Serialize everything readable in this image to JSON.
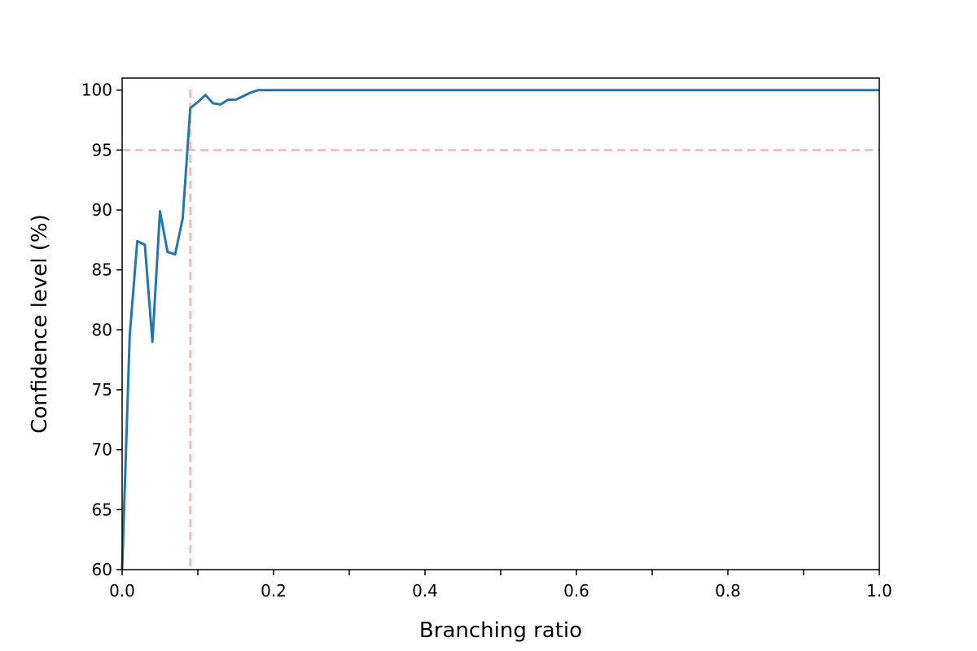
{
  "chart_data": {
    "type": "line",
    "title": "",
    "xlabel": "Branching ratio",
    "ylabel": "Confidence level (%)",
    "xlim": [
      0.0,
      1.0
    ],
    "ylim": [
      60,
      101
    ],
    "xticks": [
      0.0,
      0.2,
      0.4,
      0.6,
      0.8,
      1.0
    ],
    "xtick_labels": [
      "0.0",
      "0.2",
      "0.4",
      "0.6",
      "0.8",
      "1.0"
    ],
    "xticks_minor": [
      0.1,
      0.3,
      0.5,
      0.7,
      0.9
    ],
    "yticks": [
      60,
      65,
      70,
      75,
      80,
      85,
      90,
      95,
      100
    ],
    "ytick_labels": [
      "60",
      "65",
      "70",
      "75",
      "80",
      "85",
      "90",
      "95",
      "100"
    ],
    "grid": false,
    "legend": "none",
    "series": [
      {
        "color": "#1f77b4",
        "x": [
          0.0,
          0.01,
          0.02,
          0.03,
          0.04,
          0.05,
          0.06,
          0.07,
          0.08,
          0.09,
          0.1,
          0.11,
          0.12,
          0.13,
          0.14,
          0.15,
          0.16,
          0.17,
          0.18,
          0.19,
          0.2,
          0.22,
          0.25,
          0.3,
          0.4,
          0.5,
          0.6,
          0.7,
          0.8,
          0.9,
          1.0
        ],
        "y": [
          60.0,
          79.5,
          87.4,
          87.1,
          79.0,
          89.9,
          86.5,
          86.3,
          89.3,
          98.5,
          99.0,
          99.6,
          98.9,
          98.8,
          99.2,
          99.2,
          99.5,
          99.8,
          100.0,
          100.0,
          100.0,
          100.0,
          100.0,
          100.0,
          100.0,
          100.0,
          100.0,
          100.0,
          100.0,
          100.0,
          100.0
        ]
      }
    ],
    "reference_lines": [
      {
        "orientation": "horizontal",
        "value": 95,
        "color": "#ffb0b0",
        "style": "dashed"
      },
      {
        "orientation": "vertical",
        "value": 0.09,
        "color": "#ffb0b0",
        "style": "dashed"
      }
    ]
  }
}
